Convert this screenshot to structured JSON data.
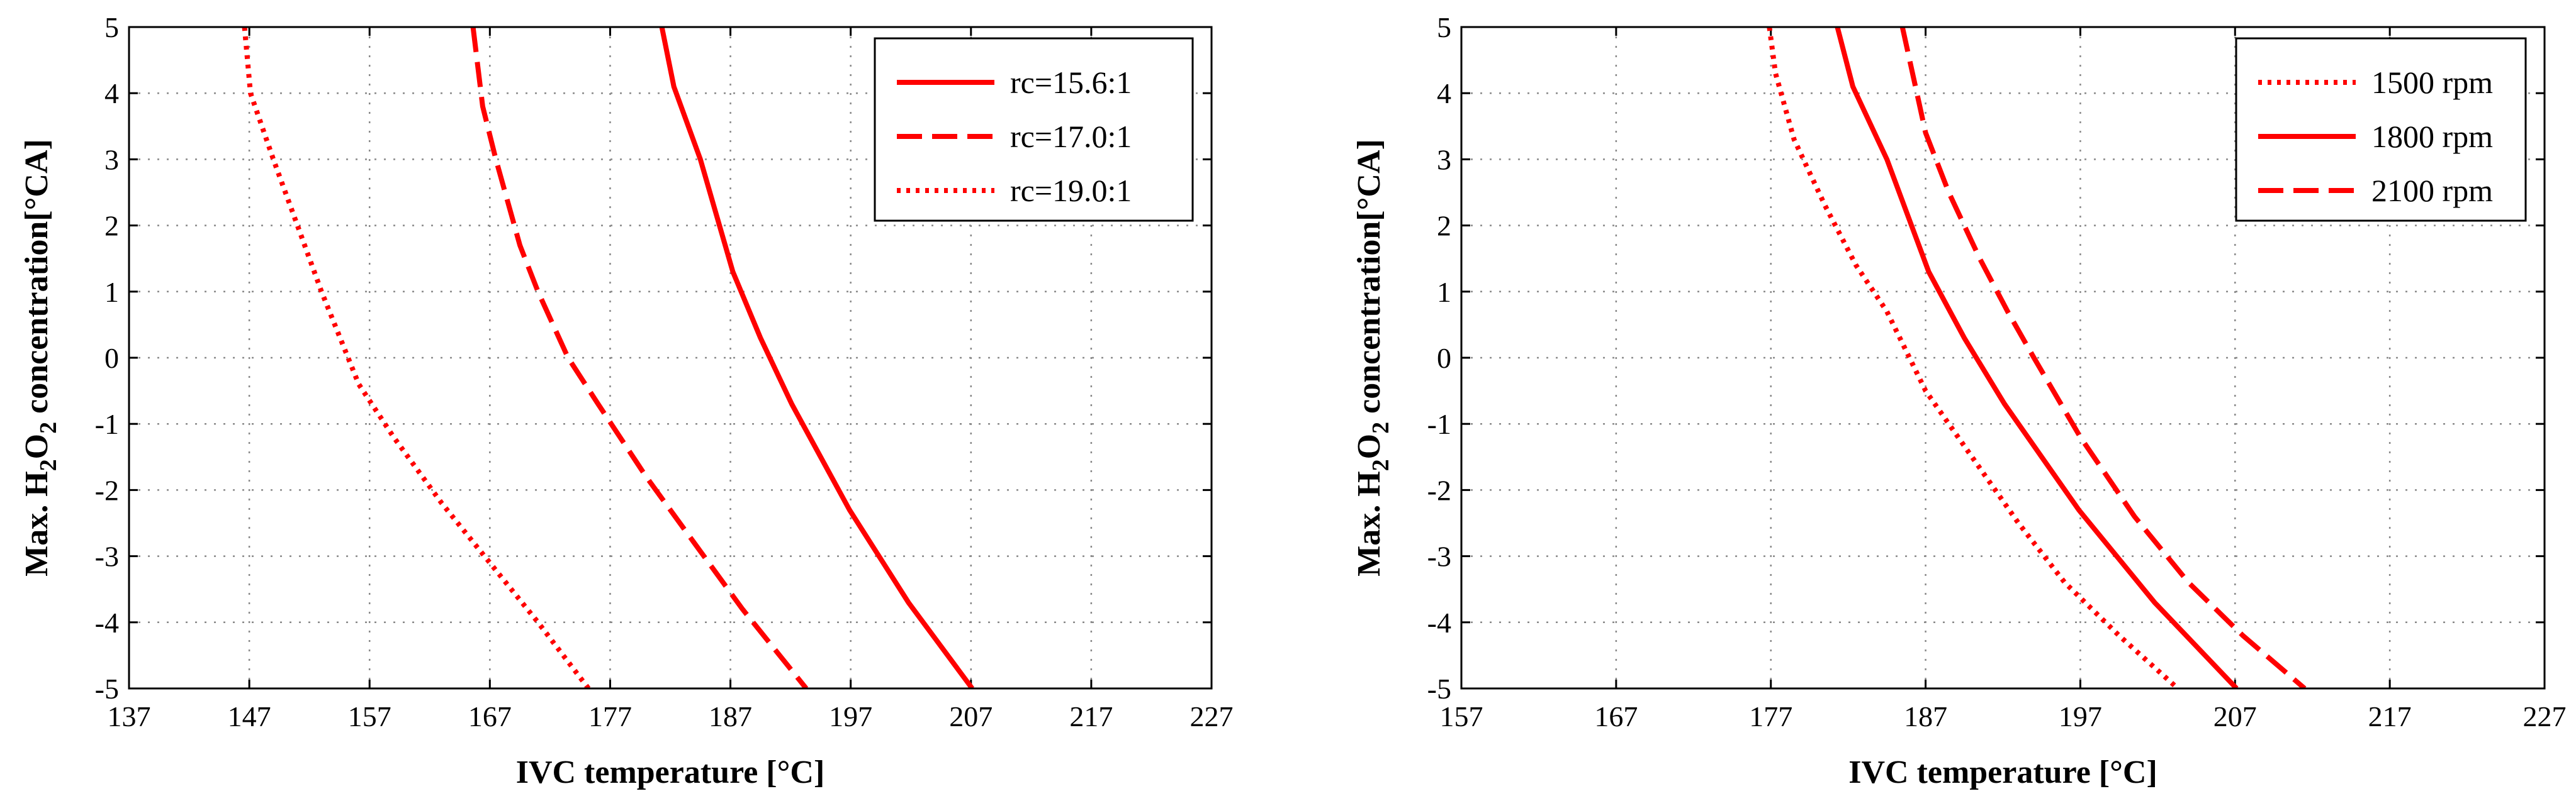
{
  "colors": {
    "series": "#ff0000",
    "axis": "#000000",
    "grid": "#8a8a8a"
  },
  "chart_data": [
    {
      "type": "line",
      "xlabel": "IVC temperature [°C]",
      "ylabel_parts": [
        "Max. H",
        "2",
        "O",
        "2",
        " concentration[°CA]"
      ],
      "xlim": [
        137,
        227
      ],
      "ylim": [
        -5,
        5
      ],
      "xticks": [
        137,
        147,
        157,
        167,
        177,
        187,
        197,
        207,
        217,
        227
      ],
      "yticks": [
        -5,
        -4,
        -3,
        -2,
        -1,
        0,
        1,
        2,
        3,
        4,
        5
      ],
      "legend_position": "top-right",
      "series": [
        {
          "name": "rc=15.6:1",
          "style": "solid",
          "points": [
            [
              181.3,
              5
            ],
            [
              182.3,
              4.1
            ],
            [
              184.5,
              3
            ],
            [
              187.2,
              1.3
            ],
            [
              189.5,
              0.3
            ],
            [
              192.1,
              -0.7
            ],
            [
              196.9,
              -2.3
            ],
            [
              201.8,
              -3.7
            ],
            [
              207.1,
              -5
            ]
          ]
        },
        {
          "name": "rc=17.0:1",
          "style": "dashed",
          "points": [
            [
              165.6,
              5
            ],
            [
              166.4,
              3.8
            ],
            [
              167.5,
              3
            ],
            [
              169.5,
              1.7
            ],
            [
              171,
              1
            ],
            [
              173.5,
              0
            ],
            [
              176,
              -0.7
            ],
            [
              180,
              -1.8
            ],
            [
              184,
              -2.8
            ],
            [
              188,
              -3.8
            ],
            [
              193.3,
              -5
            ]
          ]
        },
        {
          "name": "rc=19.0:1",
          "style": "dotted",
          "points": [
            [
              146.6,
              5
            ],
            [
              147.1,
              4
            ],
            [
              149,
              3
            ],
            [
              151,
              2
            ],
            [
              153,
              1
            ],
            [
              156.1,
              -0.4
            ],
            [
              159,
              -1.2
            ],
            [
              163,
              -2.2
            ],
            [
              167,
              -3.1
            ],
            [
              171,
              -4
            ],
            [
              175.2,
              -5
            ]
          ]
        }
      ]
    },
    {
      "type": "line",
      "xlabel": "IVC temperature [°C]",
      "ylabel_parts": [
        "Max. H",
        "2",
        "O",
        "2",
        " concentration[°CA]"
      ],
      "xlim": [
        157,
        227
      ],
      "ylim": [
        -5,
        5
      ],
      "xticks": [
        157,
        167,
        177,
        187,
        197,
        207,
        217,
        227
      ],
      "yticks": [
        -5,
        -4,
        -3,
        -2,
        -1,
        0,
        1,
        2,
        3,
        4,
        5
      ],
      "legend_position": "top-right",
      "series": [
        {
          "name": "1500 rpm",
          "style": "dotted",
          "points": [
            [
              176.9,
              5
            ],
            [
              177.3,
              4.3
            ],
            [
              178.5,
              3.3
            ],
            [
              180.5,
              2.3
            ],
            [
              182.5,
              1.4
            ],
            [
              184.5,
              0.7
            ],
            [
              187,
              -0.5
            ],
            [
              190,
              -1.5
            ],
            [
              193,
              -2.5
            ],
            [
              196,
              -3.4
            ],
            [
              199.5,
              -4.2
            ],
            [
              203.3,
              -5
            ]
          ]
        },
        {
          "name": "1800 rpm",
          "style": "solid",
          "points": [
            [
              181.3,
              5
            ],
            [
              182.3,
              4.1
            ],
            [
              184.5,
              3
            ],
            [
              187.2,
              1.3
            ],
            [
              189.5,
              0.3
            ],
            [
              192.1,
              -0.7
            ],
            [
              196.9,
              -2.3
            ],
            [
              201.8,
              -3.7
            ],
            [
              207.1,
              -5
            ]
          ]
        },
        {
          "name": "2100 rpm",
          "style": "dashed",
          "points": [
            [
              185.5,
              5
            ],
            [
              187,
              3.4
            ],
            [
              188.5,
              2.5
            ],
            [
              190.5,
              1.5
            ],
            [
              192.3,
              0.7
            ],
            [
              194,
              0
            ],
            [
              197,
              -1.2
            ],
            [
              200.5,
              -2.4
            ],
            [
              204,
              -3.4
            ],
            [
              207.5,
              -4.2
            ],
            [
              211.5,
              -5
            ]
          ]
        }
      ]
    }
  ]
}
